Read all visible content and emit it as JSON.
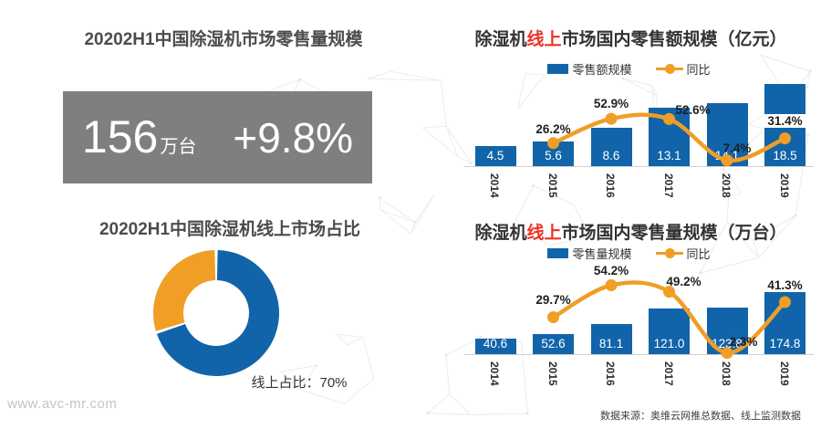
{
  "watermark": "www.avc-mr.com",
  "source_note": "数据来源：奥维云网推总数据、线上监测数据",
  "colors": {
    "bar_blue": "#1164A9",
    "line_orange": "#F09E26",
    "kpi_gray": "#7F7F7F",
    "accent_red": "#EE3124"
  },
  "kpi": {
    "title": "20202H1中国除湿机市场零售量规模",
    "value": "156",
    "unit": "万台",
    "growth": "+9.8%"
  },
  "chart_data": [
    {
      "type": "pie",
      "title": "20202H1中国除湿机线上市场占比",
      "label": "线上占比：70%",
      "slices": [
        {
          "name": "线上占比",
          "value": 70,
          "color": "#1164A9"
        },
        {
          "name": "",
          "value": 30,
          "color": "#F09E26"
        }
      ],
      "start_angle": "top",
      "direction": "clockwise",
      "donut_hole": true
    },
    {
      "type": "bar",
      "title_prefix": "除湿机",
      "title_highlight": "线上",
      "title_suffix": "市场国内零售额规模（亿元）",
      "legend_bar": "零售额规模",
      "legend_line": "同比",
      "legend_position": "top",
      "categories": [
        "2014",
        "2015",
        "2016",
        "2017",
        "2018",
        "2019"
      ],
      "series": [
        {
          "name": "零售额规模",
          "kind": "bar",
          "values": [
            4.5,
            5.6,
            8.6,
            13.1,
            14.1,
            18.5
          ]
        },
        {
          "name": "同比",
          "kind": "line",
          "values": [
            null,
            26.2,
            52.9,
            52.6,
            7.4,
            31.4
          ]
        }
      ],
      "value_labels": [
        "4.5",
        "5.6",
        "8.6",
        "13.1",
        "14.1",
        "18.5"
      ],
      "yoy_labels": [
        null,
        "26.2%",
        "52.9%",
        "52.6%",
        "7.4%",
        "31.4%"
      ],
      "ylabel": "亿元",
      "grid": false
    },
    {
      "type": "bar",
      "title_prefix": "除湿机",
      "title_highlight": "线上",
      "title_suffix": "市场国内零售量规模（万台）",
      "legend_bar": "零售量规模",
      "legend_line": "同比",
      "legend_position": "top",
      "categories": [
        "2014",
        "2015",
        "2016",
        "2017",
        "2018",
        "2019"
      ],
      "series": [
        {
          "name": "零售量规模",
          "kind": "bar",
          "values": [
            40.6,
            52.6,
            81.1,
            121.0,
            123.8,
            174.8
          ]
        },
        {
          "name": "同比",
          "kind": "line",
          "values": [
            null,
            29.7,
            54.2,
            49.2,
            2.3,
            41.3
          ]
        }
      ],
      "value_labels": [
        "40.6",
        "52.6",
        "81.1",
        "121.0",
        "123.8",
        "174.8"
      ],
      "yoy_labels": [
        null,
        "29.7%",
        "54.2%",
        "49.2%",
        "2.3%",
        "41.3%"
      ],
      "ylabel": "万台",
      "grid": false
    }
  ]
}
